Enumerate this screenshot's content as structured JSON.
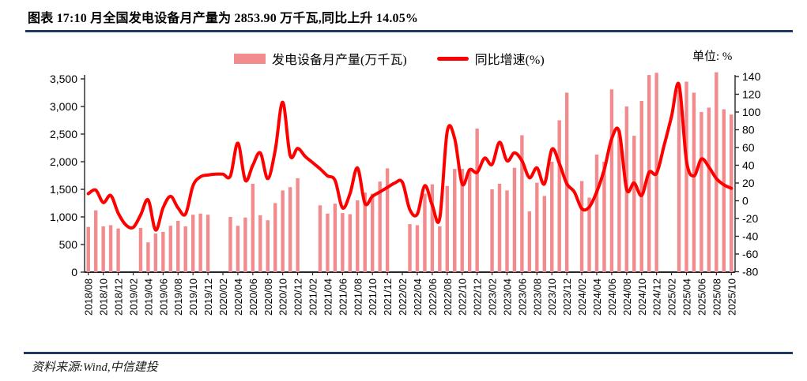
{
  "title": "图表 17:10 月全国发电设备月产量为 2853.90 万千瓦,同比上升 14.05%",
  "unit_label": "单位: %",
  "legend": {
    "bar_label": "发电设备月产量(万千瓦)",
    "line_label": "同比增速(%)"
  },
  "source": "资料来源:Wind,中信建投",
  "colors": {
    "bar": "#F28B8D",
    "line": "#FE0000",
    "divider": "#1F3864",
    "axis": "#262626",
    "text": "#000000"
  },
  "chart_data": {
    "type": "bar+line",
    "title": "10月全国发电设备月产量为2853.90万千瓦,同比上升14.05%",
    "legend_position": "top-center",
    "grid": false,
    "left_axis": {
      "label": "发电设备月产量(万千瓦)",
      "min": 0,
      "max": 3500,
      "step": 500,
      "tick_labels": [
        "0",
        "500",
        "1,000",
        "1,500",
        "2,000",
        "2,500",
        "3,000",
        "3,500"
      ]
    },
    "right_axis": {
      "label": "同比增速(%)",
      "min": -80,
      "max": 140,
      "step": 20,
      "tick_labels": [
        "-80",
        "-60",
        "-40",
        "-20",
        "0",
        "20",
        "40",
        "60",
        "80",
        "100",
        "120",
        "140"
      ]
    },
    "x_tick_every": 2,
    "categories": [
      "2018/08",
      "2018/09",
      "2018/10",
      "2018/11",
      "2018/12",
      "2019/01",
      "2019/02",
      "2019/03",
      "2019/04",
      "2019/05",
      "2019/06",
      "2019/07",
      "2019/08",
      "2019/09",
      "2019/10",
      "2019/11",
      "2019/12",
      "2020/01",
      "2020/02",
      "2020/03",
      "2020/04",
      "2020/05",
      "2020/06",
      "2020/07",
      "2020/08",
      "2020/09",
      "2020/10",
      "2020/11",
      "2020/12",
      "2021/01",
      "2021/02",
      "2021/03",
      "2021/04",
      "2021/05",
      "2021/06",
      "2021/07",
      "2021/08",
      "2021/09",
      "2021/10",
      "2021/11",
      "2021/12",
      "2022/01",
      "2022/02",
      "2022/03",
      "2022/04",
      "2022/05",
      "2022/06",
      "2022/07",
      "2022/08",
      "2022/09",
      "2022/10",
      "2022/11",
      "2022/12",
      "2023/01",
      "2023/02",
      "2023/03",
      "2023/04",
      "2023/05",
      "2023/06",
      "2023/07",
      "2023/08",
      "2023/09",
      "2023/10",
      "2023/11",
      "2023/12",
      "2024/01",
      "2024/02",
      "2024/03",
      "2024/04",
      "2024/05",
      "2024/06",
      "2024/07",
      "2024/08",
      "2024/09",
      "2024/10",
      "2024/11",
      "2024/12",
      "2025/01",
      "2025/02",
      "2025/03",
      "2025/04",
      "2025/05",
      "2025/06",
      "2025/07",
      "2025/08",
      "2025/09",
      "2025/10"
    ],
    "series": [
      {
        "name": "发电设备月产量(万千瓦)",
        "type": "bar",
        "axis": "left",
        "values": [
          820,
          1120,
          830,
          850,
          790,
          null,
          null,
          800,
          540,
          700,
          730,
          840,
          930,
          830,
          1040,
          1060,
          1040,
          null,
          null,
          1000,
          840,
          990,
          1600,
          1030,
          940,
          1250,
          1480,
          1540,
          1700,
          null,
          null,
          1210,
          1060,
          1240,
          1070,
          1050,
          1300,
          1440,
          1420,
          1640,
          1880,
          null,
          null,
          870,
          850,
          1420,
          1590,
          830,
          1560,
          1870,
          1870,
          1850,
          2600,
          null,
          1500,
          1600,
          1480,
          1890,
          2480,
          1100,
          1620,
          1380,
          2000,
          2750,
          3250,
          null,
          1650,
          1350,
          2130,
          2000,
          3310,
          2570,
          3000,
          2470,
          3100,
          3570,
          3610,
          null,
          null,
          3300,
          3450,
          3250,
          2900,
          2980,
          3620,
          2950,
          2853.9
        ]
      },
      {
        "name": "同比增速(%)",
        "type": "line",
        "axis": "right",
        "values": [
          8,
          12,
          -2,
          6,
          -14,
          -27,
          -30,
          -16,
          1,
          -33,
          -8,
          5,
          -8,
          -15,
          17,
          27,
          29,
          30,
          30,
          28,
          65,
          23,
          40,
          54,
          25,
          57,
          111,
          51,
          59,
          50,
          43,
          36,
          28,
          23,
          -8,
          8,
          37,
          -3,
          5,
          10,
          15,
          20,
          21,
          -10,
          -15,
          17,
          -5,
          -20,
          78,
          70,
          19,
          35,
          32,
          48,
          41,
          66,
          45,
          54,
          45,
          26,
          37,
          19,
          58,
          42,
          19,
          10,
          -9,
          -7,
          10,
          35,
          70,
          78,
          13,
          20,
          6,
          32,
          31,
          62,
          95,
          131,
          45,
          28,
          47,
          38,
          25,
          18,
          14.05
        ]
      }
    ]
  }
}
